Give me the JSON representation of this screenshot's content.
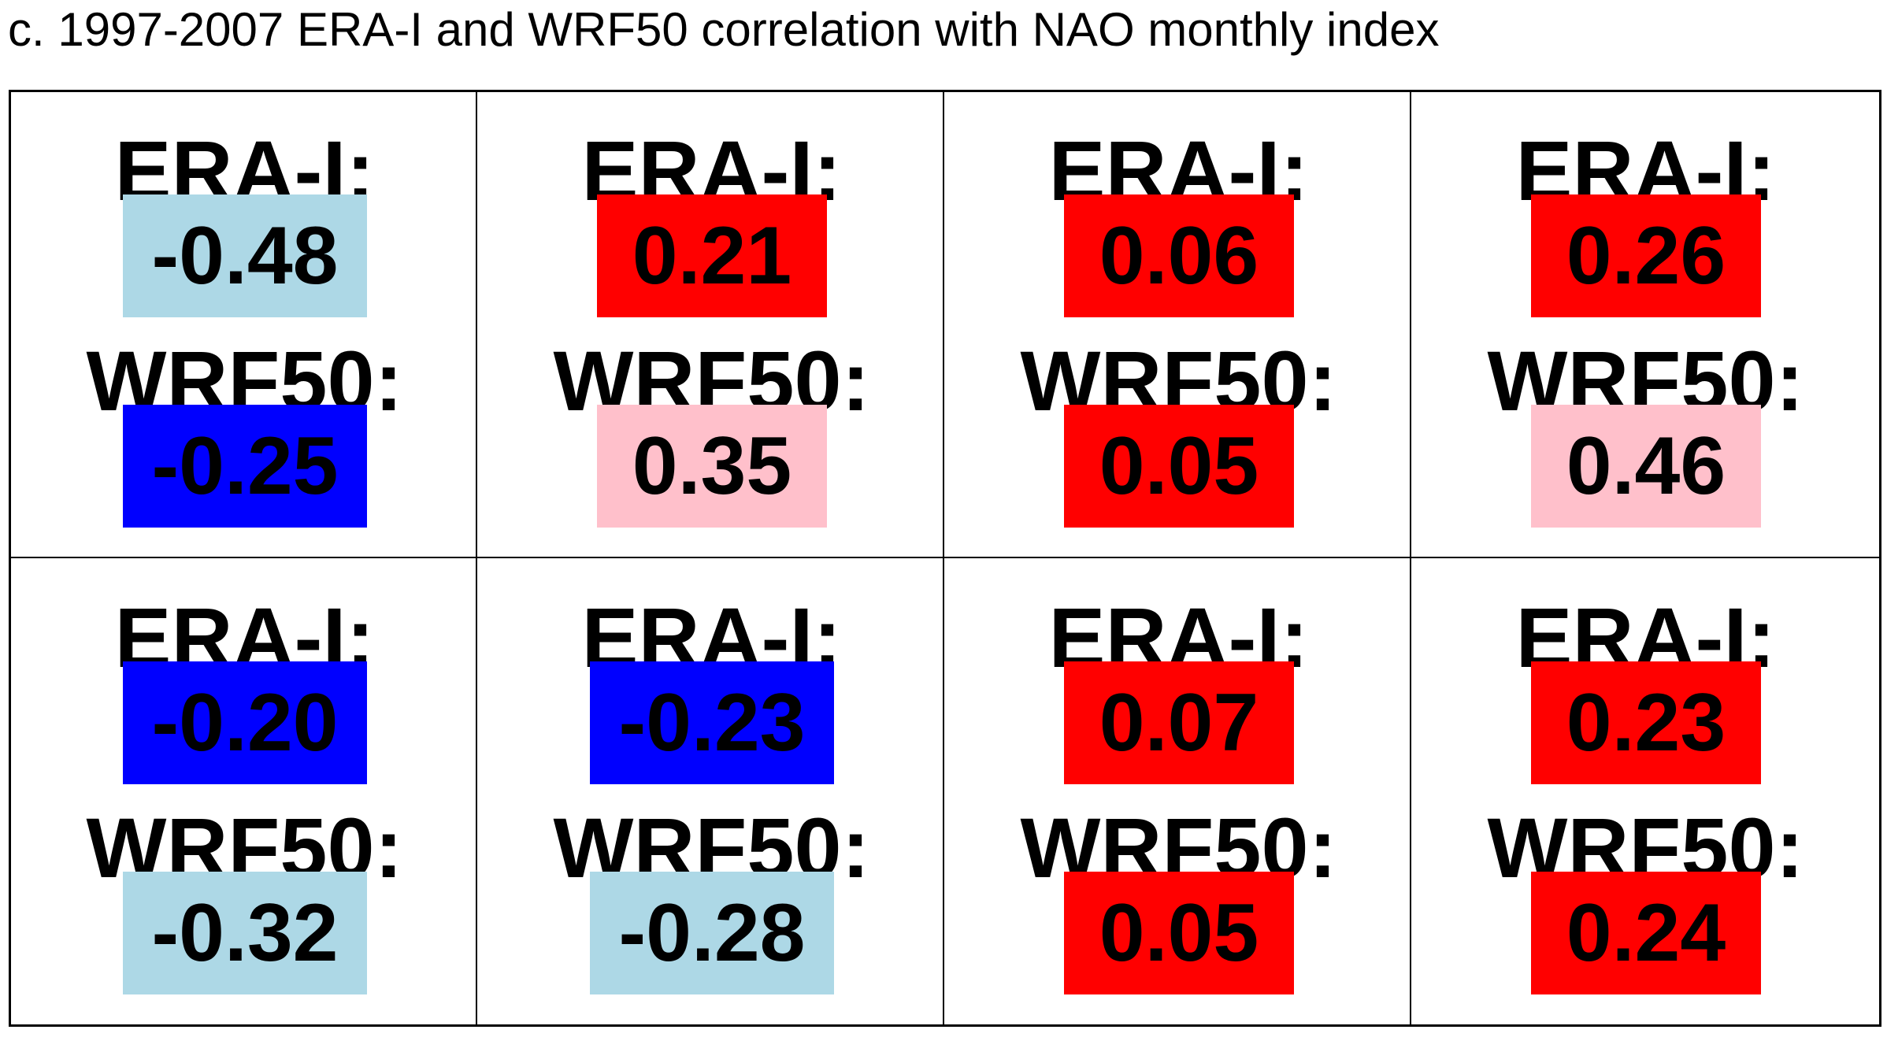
{
  "title": "c. 1997-2007 ERA-I and WRF50 correlation with NAO monthly index",
  "chart_data": {
    "type": "table",
    "title": "c. 1997-2007 ERA-I and WRF50 correlation with NAO monthly index",
    "rows": 2,
    "cols": 4,
    "series_labels": [
      "ERA-I:",
      "WRF50:"
    ],
    "cells": [
      {
        "era_label": "ERA-I:",
        "era_value": "-0.48",
        "era_color": "#add8e6",
        "wrf_label": "WRF50:",
        "wrf_value": "-0.25",
        "wrf_color": "#0000ff"
      },
      {
        "era_label": "ERA-I:",
        "era_value": "0.21",
        "era_color": "#ff0000",
        "wrf_label": "WRF50:",
        "wrf_value": "0.35",
        "wrf_color": "#ffc0cb"
      },
      {
        "era_label": "ERA-I:",
        "era_value": "0.06",
        "era_color": "#ff0000",
        "wrf_label": "WRF50:",
        "wrf_value": "0.05",
        "wrf_color": "#ff0000"
      },
      {
        "era_label": "ERA-I:",
        "era_value": "0.26",
        "era_color": "#ff0000",
        "wrf_label": "WRF50:",
        "wrf_value": "0.46",
        "wrf_color": "#ffc0cb"
      },
      {
        "era_label": "ERA-I:",
        "era_value": "-0.20",
        "era_color": "#0000ff",
        "wrf_label": "WRF50:",
        "wrf_value": "-0.32",
        "wrf_color": "#add8e6"
      },
      {
        "era_label": "ERA-I:",
        "era_value": "-0.23",
        "era_color": "#0000ff",
        "wrf_label": "WRF50:",
        "wrf_value": "-0.28",
        "wrf_color": "#add8e6"
      },
      {
        "era_label": "ERA-I:",
        "era_value": "0.07",
        "era_color": "#ff0000",
        "wrf_label": "WRF50:",
        "wrf_value": "0.05",
        "wrf_color": "#ff0000"
      },
      {
        "era_label": "ERA-I:",
        "era_value": "0.23",
        "era_color": "#ff0000",
        "wrf_label": "WRF50:",
        "wrf_value": "0.24",
        "wrf_color": "#ff0000"
      }
    ],
    "colors": {
      "strong_negative": "#0000ff",
      "weak_negative": "#add8e6",
      "weak_positive": "#ff0000",
      "strong_positive": "#ffc0cb"
    }
  }
}
